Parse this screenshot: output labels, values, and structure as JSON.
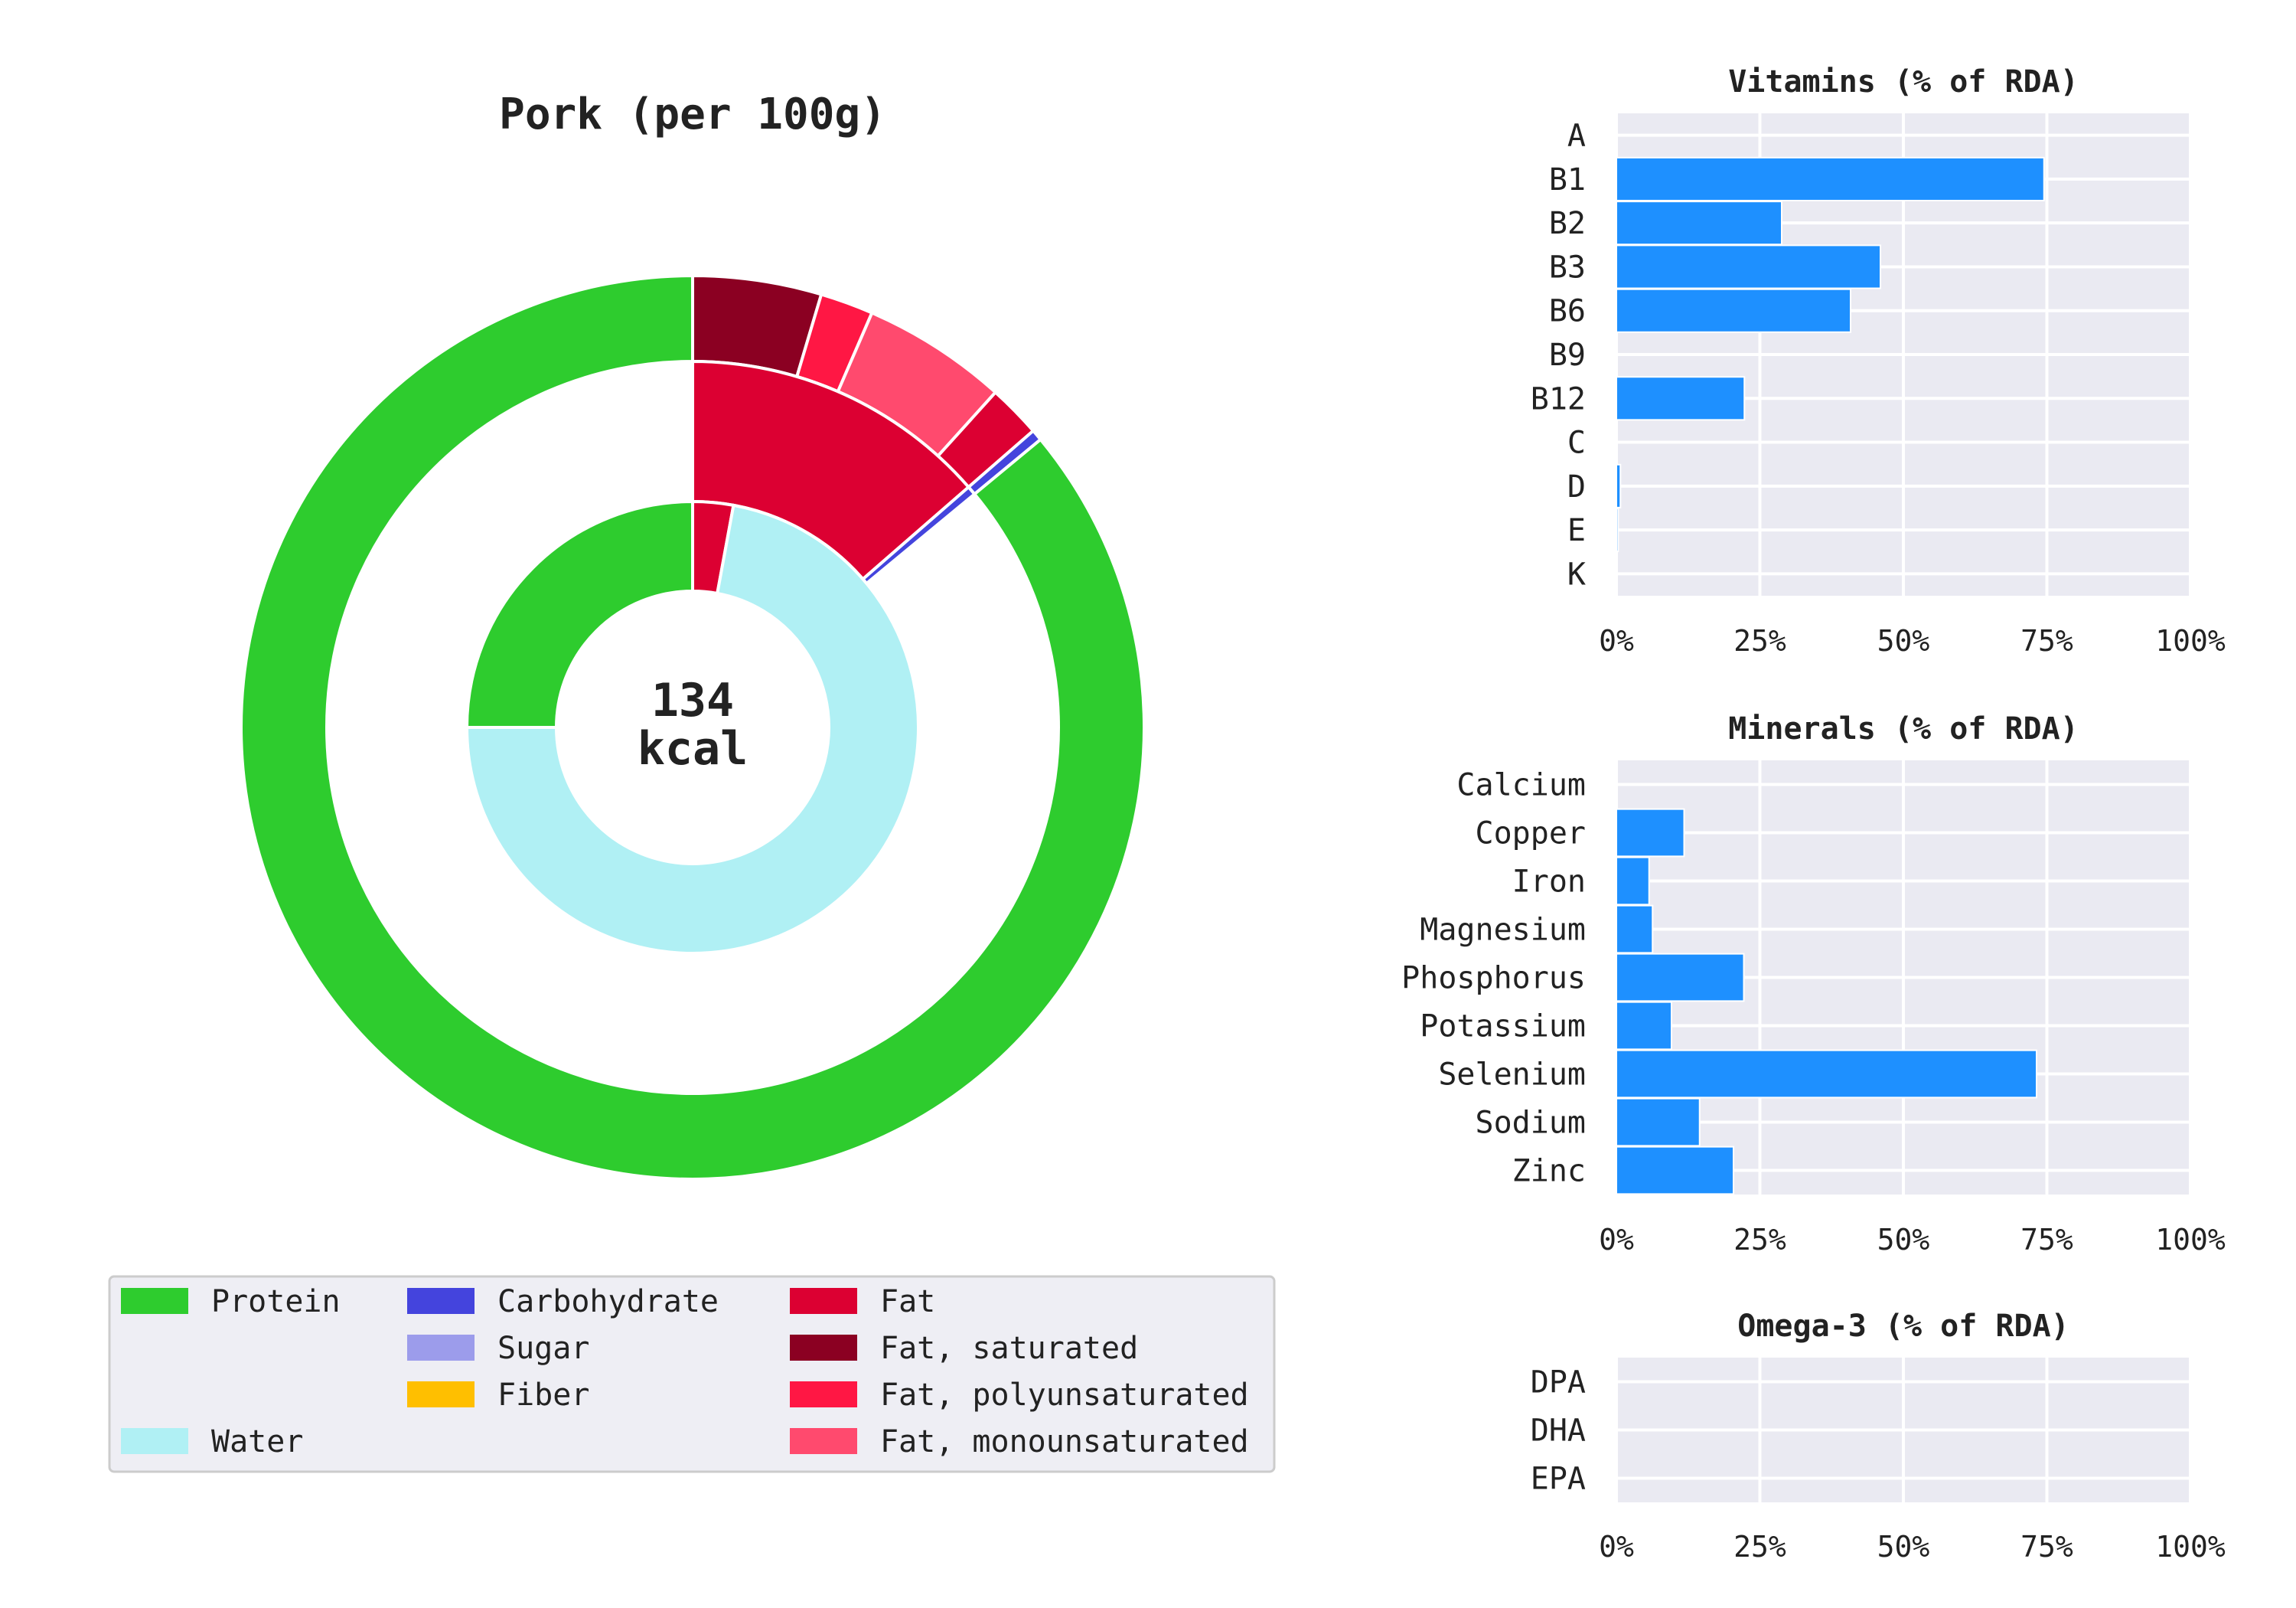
{
  "chart_data": [
    {
      "type": "pie",
      "subtype": "nested-donut",
      "title": "Pork (per 100g)",
      "center_label": [
        "134",
        "kcal"
      ],
      "outer_ring": [
        {
          "name": "Fat, saturated",
          "value": 4.6,
          "color": "#8b0022"
        },
        {
          "name": "Fat, polyunsaturated",
          "value": 1.9,
          "color": "#ff1744"
        },
        {
          "name": "Fat, monounsaturated",
          "value": 5.2,
          "color": "#ff4a6e"
        },
        {
          "name": "Fat",
          "value": 1.9,
          "color": "#dc0032"
        },
        {
          "name": "Carbohydrate",
          "value": 0.4,
          "color": "#4444dd"
        },
        {
          "name": "Protein",
          "value": 86.0,
          "color": "#2ecc2e"
        }
      ],
      "middle_ring": [
        {
          "name": "Fat",
          "value": 13.6,
          "color": "#dc0032"
        },
        {
          "name": "Carbohydrate",
          "value": 0.4,
          "color": "#4444dd"
        }
      ],
      "inner_ring": [
        {
          "name": "Fat",
          "value": 2.9,
          "color": "#dc0032"
        },
        {
          "name": "Water",
          "value": 72.1,
          "color": "#b0f0f4"
        },
        {
          "name": "Protein",
          "value": 25.0,
          "color": "#2ecc2e"
        }
      ],
      "legend": [
        {
          "label": "Protein",
          "color": "#2ecc2e",
          "col": 0,
          "row": 0
        },
        {
          "label": "Water",
          "color": "#b0f0f4",
          "col": 0,
          "row": 3
        },
        {
          "label": "Carbohydrate",
          "color": "#4444dd",
          "col": 1,
          "row": 0
        },
        {
          "label": "Sugar",
          "color": "#9c9ceb",
          "col": 1,
          "row": 1
        },
        {
          "label": "Fiber",
          "color": "#ffbf00",
          "col": 1,
          "row": 2
        },
        {
          "label": "Fat",
          "color": "#dc0032",
          "col": 2,
          "row": 0
        },
        {
          "label": "Fat, saturated",
          "color": "#8b0022",
          "col": 2,
          "row": 1
        },
        {
          "label": "Fat, polyunsaturated",
          "color": "#ff1744",
          "col": 2,
          "row": 2
        },
        {
          "label": "Fat, monounsaturated",
          "color": "#ff4a6e",
          "col": 2,
          "row": 3
        }
      ]
    },
    {
      "type": "bar",
      "orientation": "horizontal",
      "title": "Vitamins (% of RDA)",
      "categories": [
        "A",
        "B1",
        "B2",
        "B3",
        "B6",
        "B9",
        "B12",
        "C",
        "D",
        "E",
        "K"
      ],
      "values": [
        0,
        74.5,
        28.8,
        46,
        40.8,
        0,
        22.3,
        0,
        0.7,
        0.3,
        0
      ],
      "xlim": [
        0,
        100
      ],
      "xticks": [
        "0%",
        "25%",
        "50%",
        "75%",
        "100%"
      ],
      "color": "#1e90ff",
      "grid": true
    },
    {
      "type": "bar",
      "orientation": "horizontal",
      "title": "Minerals (% of RDA)",
      "categories": [
        "Calcium",
        "Copper",
        "Iron",
        "Magnesium",
        "Phosphorus",
        "Potassium",
        "Selenium",
        "Sodium",
        "Zinc"
      ],
      "values": [
        0,
        11.8,
        5.7,
        6.3,
        22.2,
        9.6,
        73.2,
        14.5,
        20.4
      ],
      "xlim": [
        0,
        100
      ],
      "xticks": [
        "0%",
        "25%",
        "50%",
        "75%",
        "100%"
      ],
      "color": "#1e90ff",
      "grid": true
    },
    {
      "type": "bar",
      "orientation": "horizontal",
      "title": "Omega-3 (% of RDA)",
      "categories": [
        "DPA",
        "DHA",
        "EPA"
      ],
      "values": [
        0,
        0,
        0
      ],
      "xlim": [
        0,
        100
      ],
      "xticks": [
        "0%",
        "25%",
        "50%",
        "75%",
        "100%"
      ],
      "color": "#1e90ff",
      "grid": true
    }
  ]
}
